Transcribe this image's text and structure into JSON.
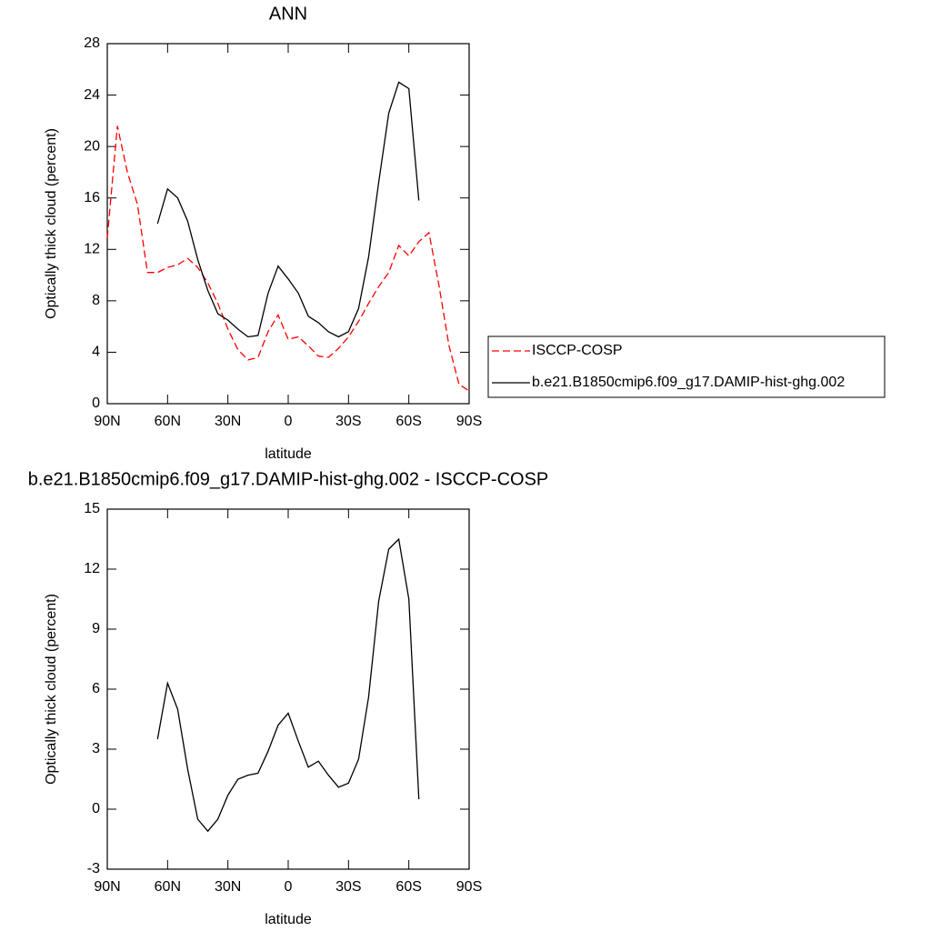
{
  "chart_data": [
    {
      "type": "line",
      "title": "ANN",
      "xlabel": "latitude",
      "ylabel": "Optically thick cloud (percent)",
      "x": [
        90,
        85,
        80,
        75,
        70,
        65,
        60,
        55,
        50,
        45,
        40,
        35,
        30,
        25,
        20,
        15,
        10,
        5,
        0,
        -5,
        -10,
        -15,
        -20,
        -25,
        -30,
        -35,
        -40,
        -45,
        -50,
        -55,
        -60,
        -65,
        -70,
        -75,
        -80,
        -85,
        -90
      ],
      "xlim": [
        90,
        -90
      ],
      "xticks": [
        {
          "value": 90,
          "label": "90N"
        },
        {
          "value": 60,
          "label": "60N"
        },
        {
          "value": 30,
          "label": "30N"
        },
        0,
        {
          "value": -30,
          "label": "30S"
        },
        {
          "value": -60,
          "label": "60S"
        },
        {
          "value": -90,
          "label": "90S"
        }
      ],
      "ylim": [
        0,
        28
      ],
      "yticks": [
        0,
        4,
        8,
        12,
        16,
        20,
        24,
        28
      ],
      "legend": "right",
      "series": [
        {
          "name": "ISCCP-COSP",
          "color": "#ff0000",
          "linestyle": "dashed",
          "values": [
            12.9,
            21.6,
            18.0,
            15.5,
            10.2,
            10.2,
            10.6,
            10.8,
            11.3,
            10.6,
            9.4,
            7.8,
            5.8,
            4.2,
            3.4,
            3.6,
            5.6,
            6.9,
            5.0,
            5.2,
            4.5,
            3.7,
            3.6,
            4.3,
            5.2,
            6.4,
            7.8,
            9.1,
            10.2,
            12.3,
            11.5,
            12.6,
            13.3,
            9.2,
            4.5,
            1.5,
            1.0
          ]
        },
        {
          "name": "b.e21.B1850cmip6.f09_g17.DAMIP-hist-ghg.002",
          "color": "#000000",
          "linestyle": "solid",
          "values": [
            null,
            null,
            null,
            null,
            null,
            14.0,
            16.7,
            16.0,
            14.2,
            11.2,
            8.8,
            7.0,
            6.5,
            5.8,
            5.2,
            5.3,
            8.6,
            10.7,
            9.7,
            8.6,
            6.8,
            6.3,
            5.6,
            5.2,
            5.6,
            7.4,
            11.4,
            17.2,
            22.6,
            25.0,
            24.5,
            15.8,
            null,
            null,
            null,
            null,
            null
          ]
        }
      ]
    },
    {
      "type": "line",
      "title": "b.e21.B1850cmip6.f09_g17.DAMIP-hist-ghg.002 - ISCCP-COSP",
      "xlabel": "latitude",
      "ylabel": "Optically thick cloud (percent)",
      "x": [
        90,
        85,
        80,
        75,
        70,
        65,
        60,
        55,
        50,
        45,
        40,
        35,
        30,
        25,
        20,
        15,
        10,
        5,
        0,
        -5,
        -10,
        -15,
        -20,
        -25,
        -30,
        -35,
        -40,
        -45,
        -50,
        -55,
        -60,
        -65,
        -70,
        -75,
        -80,
        -85,
        -90
      ],
      "xlim": [
        90,
        -90
      ],
      "xticks": [
        {
          "value": 90,
          "label": "90N"
        },
        {
          "value": 60,
          "label": "60N"
        },
        {
          "value": 30,
          "label": "30N"
        },
        0,
        {
          "value": -30,
          "label": "30S"
        },
        {
          "value": -60,
          "label": "60S"
        },
        {
          "value": -90,
          "label": "90S"
        }
      ],
      "ylim": [
        -3,
        15
      ],
      "yticks": [
        -3,
        0,
        3,
        6,
        9,
        12,
        15
      ],
      "series": [
        {
          "color": "#000000",
          "linestyle": "solid",
          "values": [
            null,
            null,
            null,
            null,
            null,
            3.5,
            6.3,
            5.0,
            2.0,
            -0.5,
            -1.1,
            -0.5,
            0.7,
            1.5,
            1.7,
            1.8,
            2.9,
            4.2,
            4.8,
            3.4,
            2.1,
            2.4,
            1.7,
            1.1,
            1.3,
            2.5,
            5.6,
            10.4,
            13.0,
            13.5,
            10.5,
            0.5,
            null,
            null,
            null,
            null,
            null
          ]
        }
      ]
    }
  ]
}
